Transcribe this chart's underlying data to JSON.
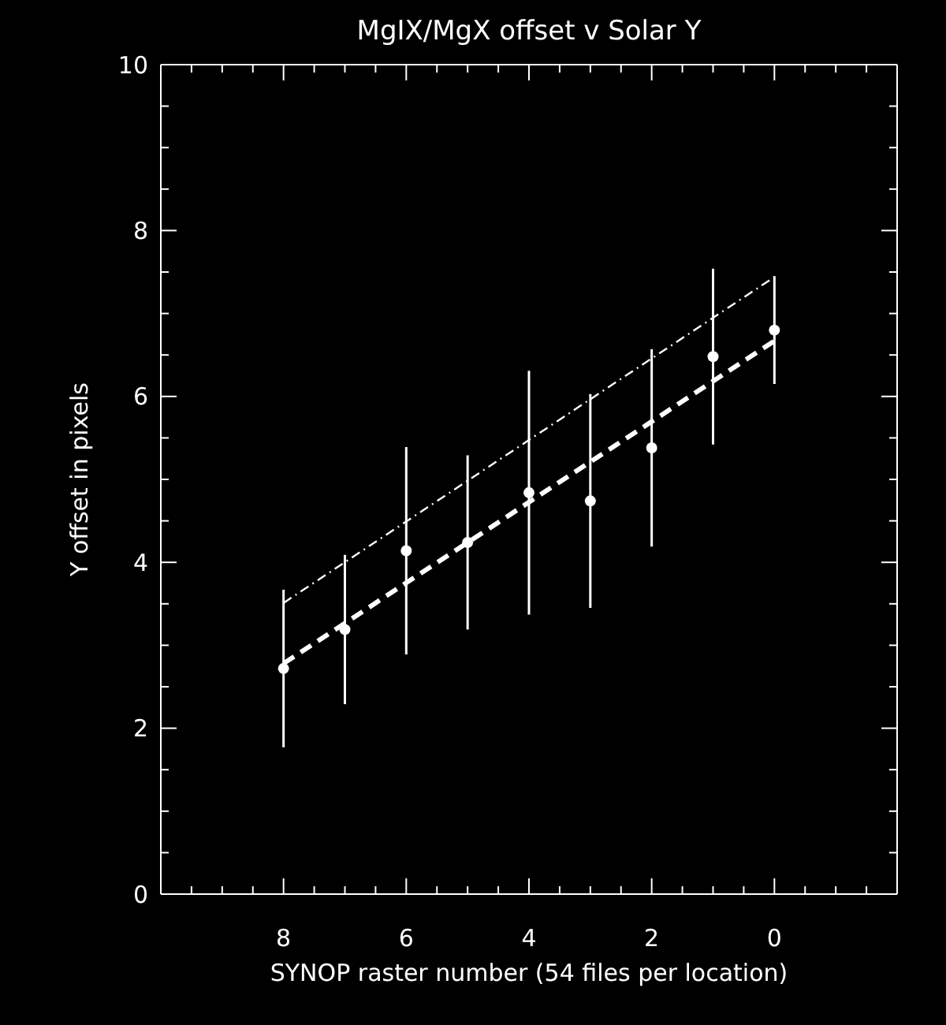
{
  "chart_data": {
    "type": "scatter",
    "title": "MgIX/MgX offset v Solar Y",
    "xlabel": "SYNOP raster number (54 files per location)",
    "ylabel": "Y offset in pixels",
    "xlim": [
      10,
      -2
    ],
    "xticks": [
      {
        "value": 10,
        "label": null
      },
      {
        "value": 9.5,
        "label": null
      },
      {
        "value": 9,
        "label": null
      },
      {
        "value": 8.5,
        "label": null
      },
      8,
      {
        "value": 7.5,
        "label": null
      },
      {
        "value": 7,
        "label": null
      },
      {
        "value": 6.5,
        "label": null
      },
      6,
      {
        "value": 5.5,
        "label": null
      },
      {
        "value": 5,
        "label": null
      },
      {
        "value": 4.5,
        "label": null
      },
      4,
      {
        "value": 3.5,
        "label": null
      },
      {
        "value": 3,
        "label": null
      },
      {
        "value": 2.5,
        "label": null
      },
      2,
      {
        "value": 1.5,
        "label": null
      },
      {
        "value": 1,
        "label": null
      },
      {
        "value": 0.5,
        "label": null
      },
      0,
      {
        "value": -0.5,
        "label": null
      },
      {
        "value": -1,
        "label": null
      },
      {
        "value": -1.5,
        "label": null
      },
      {
        "value": -2,
        "label": null
      }
    ],
    "ylim": [
      0,
      10
    ],
    "yticks": [
      0,
      {
        "value": 0.5,
        "label": null
      },
      {
        "value": 1,
        "label": null
      },
      {
        "value": 1.5,
        "label": null
      },
      2,
      {
        "value": 2.5,
        "label": null
      },
      {
        "value": 3,
        "label": null
      },
      {
        "value": 3.5,
        "label": null
      },
      4,
      {
        "value": 4.5,
        "label": null
      },
      {
        "value": 5,
        "label": null
      },
      {
        "value": 5.5,
        "label": null
      },
      6,
      {
        "value": 6.5,
        "label": null
      },
      {
        "value": 7,
        "label": null
      },
      {
        "value": 7.5,
        "label": null
      },
      8,
      {
        "value": 8.5,
        "label": null
      },
      {
        "value": 9,
        "label": null
      },
      {
        "value": 9.5,
        "label": null
      },
      10
    ],
    "series": [
      {
        "color": "#ffffff",
        "marker": "circle",
        "x": [
          8,
          7,
          6,
          5,
          4,
          3,
          2,
          1,
          0
        ],
        "values": [
          2.72,
          3.19,
          4.14,
          4.24,
          4.84,
          4.74,
          5.38,
          6.48,
          6.8
        ],
        "errors": [
          0.95,
          0.9,
          1.25,
          1.05,
          1.47,
          1.29,
          1.19,
          1.06,
          0.65
        ]
      },
      {
        "type": "line",
        "color": "#ffffff",
        "line_style": "dashed",
        "x": [
          8,
          0
        ],
        "values": [
          2.78,
          6.67
        ]
      },
      {
        "type": "line",
        "color": "#ffffff",
        "line_style": "dotted",
        "x": [
          8,
          0
        ],
        "values": [
          3.51,
          7.44
        ]
      }
    ]
  }
}
